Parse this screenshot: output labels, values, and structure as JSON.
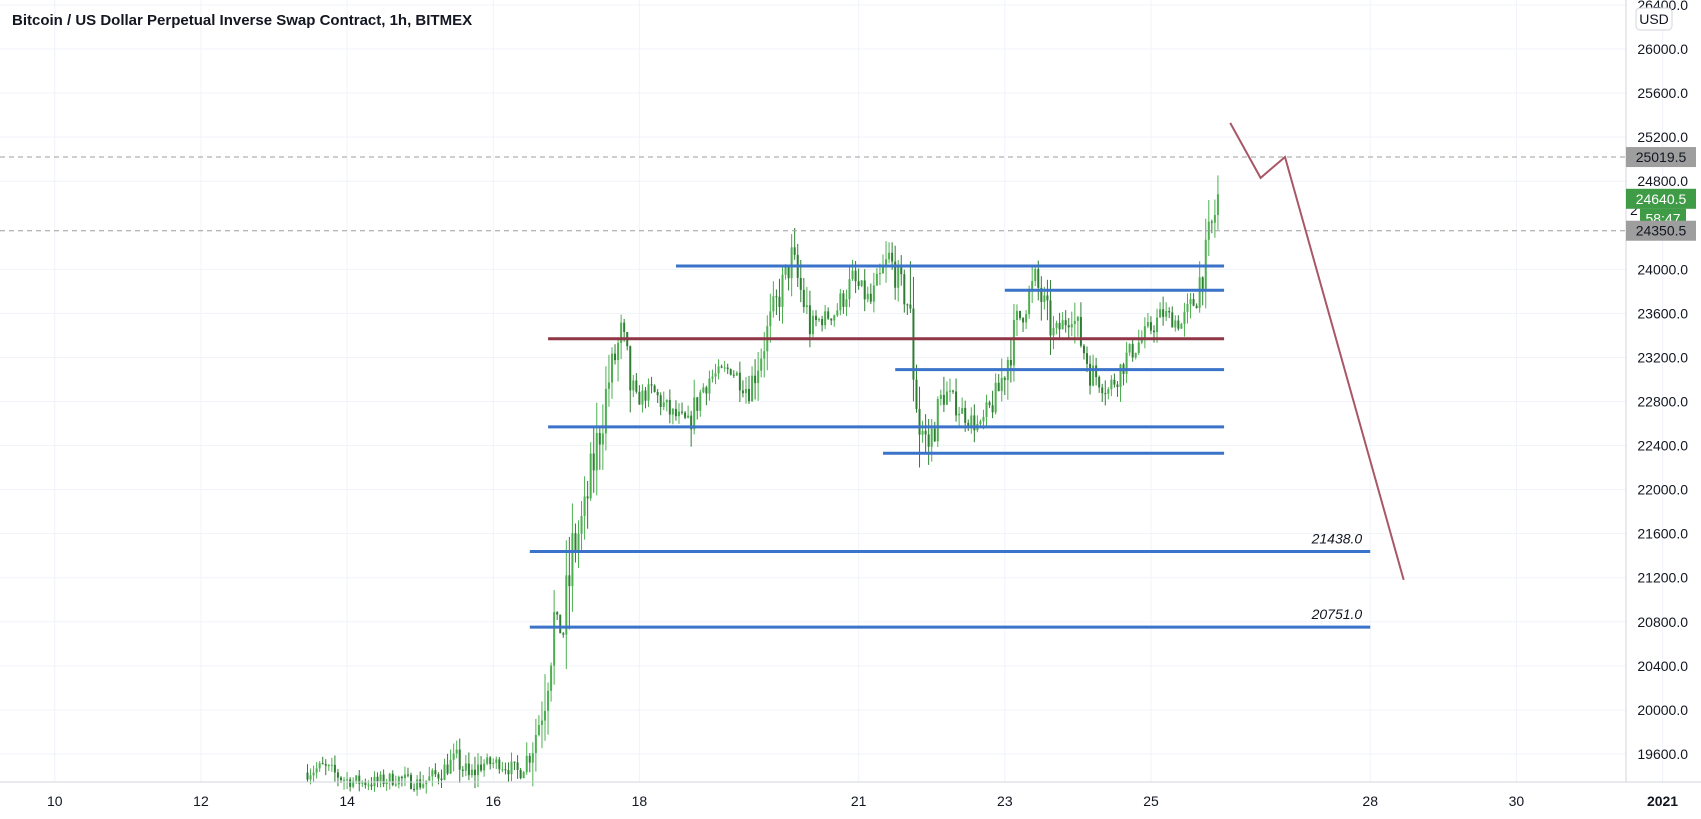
{
  "title": "Bitcoin / US Dollar Perpetual Inverse Swap Contract, 1h, BITMEX",
  "currency_button": "USD",
  "colors": {
    "up": "#4caf50",
    "up_dark": "#2e7d32",
    "level_blue": "#3a73c9",
    "level_maroon": "#8e3646",
    "projection": "#a85766",
    "price_badge": "#3f9b46",
    "gray_badge": "#9e9e9e",
    "dashed": "#9e9e9e"
  },
  "price_badges": [
    {
      "label": "25019.5",
      "value": 25019.5,
      "style": "gray"
    },
    {
      "label": "24640.5",
      "value": 24640.5,
      "style": "green"
    },
    {
      "label": "58:47",
      "value": 24460,
      "style": "green-timer"
    },
    {
      "label": "24350.5",
      "value": 24350.5,
      "style": "gray"
    }
  ],
  "partial_tick": {
    "label": "2",
    "value": 24540
  },
  "chart_data": {
    "type": "candlestick",
    "x_axis_type": "date",
    "x_range": [
      "2020-12-09T06:00",
      "2020-12-31T12:00"
    ],
    "x_ticks": [
      {
        "label": "10",
        "date": "2020-12-10"
      },
      {
        "label": "12",
        "date": "2020-12-12"
      },
      {
        "label": "14",
        "date": "2020-12-14"
      },
      {
        "label": "16",
        "date": "2020-12-16"
      },
      {
        "label": "18",
        "date": "2020-12-18"
      },
      {
        "label": "21",
        "date": "2020-12-21"
      },
      {
        "label": "23",
        "date": "2020-12-23"
      },
      {
        "label": "25",
        "date": "2020-12-25"
      },
      {
        "label": "28",
        "date": "2020-12-28"
      },
      {
        "label": "30",
        "date": "2020-12-30"
      },
      {
        "label": "2021",
        "date": "2021-01-01"
      }
    ],
    "y_range": [
      19300,
      26400
    ],
    "y_ticks": [
      {
        "label": "19600.0",
        "value": 19600
      },
      {
        "label": "20000.0",
        "value": 20000
      },
      {
        "label": "20400.0",
        "value": 20400
      },
      {
        "label": "20800.0",
        "value": 20800
      },
      {
        "label": "21200.0",
        "value": 21200
      },
      {
        "label": "21600.0",
        "value": 21600
      },
      {
        "label": "22000.0",
        "value": 22000
      },
      {
        "label": "22400.0",
        "value": 22400
      },
      {
        "label": "22800.0",
        "value": 22800
      },
      {
        "label": "23200.0",
        "value": 23200
      },
      {
        "label": "23600.0",
        "value": 23600
      },
      {
        "label": "24000.0",
        "value": 24000
      },
      {
        "label": "24800.0",
        "value": 24800
      },
      {
        "label": "25200.0",
        "value": 25200
      },
      {
        "label": "25600.0",
        "value": 25600
      },
      {
        "label": "26000.0",
        "value": 26000
      },
      {
        "label": "26400.0",
        "value": 26400
      }
    ],
    "price_path": [
      [
        "2020-12-13T10:00",
        19430
      ],
      [
        "2020-12-13T16:00",
        19480
      ],
      [
        "2020-12-14T00:00",
        19360
      ],
      [
        "2020-12-14T08:00",
        19340
      ],
      [
        "2020-12-14T16:00",
        19380
      ],
      [
        "2020-12-15T00:00",
        19330
      ],
      [
        "2020-12-15T06:00",
        19420
      ],
      [
        "2020-12-15T12:00",
        19560
      ],
      [
        "2020-12-15T16:00",
        19380
      ],
      [
        "2020-12-15T20:00",
        19510
      ],
      [
        "2020-12-16T02:00",
        19520
      ],
      [
        "2020-12-16T08:00",
        19440
      ],
      [
        "2020-12-16T12:00",
        19600
      ],
      [
        "2020-12-16T16:00",
        20000
      ],
      [
        "2020-12-16T20:00",
        20800
      ],
      [
        "2020-12-16T23:00",
        20700
      ],
      [
        "2020-12-17T02:00",
        21400
      ],
      [
        "2020-12-17T06:00",
        21800
      ],
      [
        "2020-12-17T10:00",
        22400
      ],
      [
        "2020-12-17T14:00",
        23000
      ],
      [
        "2020-12-17T18:00",
        23400
      ],
      [
        "2020-12-17T22:00",
        22800
      ],
      [
        "2020-12-18T04:00",
        22900
      ],
      [
        "2020-12-18T10:00",
        22700
      ],
      [
        "2020-12-18T16:00",
        22600
      ],
      [
        "2020-12-18T22:00",
        23000
      ],
      [
        "2020-12-19T06:00",
        23100
      ],
      [
        "2020-12-19T12:00",
        22900
      ],
      [
        "2020-12-19T20:00",
        23600
      ],
      [
        "2020-12-20T02:00",
        24100
      ],
      [
        "2020-12-20T08:00",
        23500
      ],
      [
        "2020-12-20T16:00",
        23600
      ],
      [
        "2020-12-20T22:00",
        23900
      ],
      [
        "2020-12-21T04:00",
        23700
      ],
      [
        "2020-12-21T10:00",
        24100
      ],
      [
        "2020-12-21T16:00",
        23700
      ],
      [
        "2020-12-21T20:00",
        22600
      ],
      [
        "2020-12-21T23:00",
        22400
      ],
      [
        "2020-12-22T04:00",
        22900
      ],
      [
        "2020-12-22T10:00",
        22700
      ],
      [
        "2020-12-22T16:00",
        22550
      ],
      [
        "2020-12-22T22:00",
        22900
      ],
      [
        "2020-12-23T04:00",
        23500
      ],
      [
        "2020-12-23T10:00",
        23900
      ],
      [
        "2020-12-23T16:00",
        23400
      ],
      [
        "2020-12-23T22:00",
        23600
      ],
      [
        "2020-12-24T04:00",
        23100
      ],
      [
        "2020-12-24T10:00",
        22900
      ],
      [
        "2020-12-24T16:00",
        23200
      ],
      [
        "2020-12-24T22:00",
        23400
      ],
      [
        "2020-12-25T04:00",
        23600
      ],
      [
        "2020-12-25T10:00",
        23500
      ],
      [
        "2020-12-25T14:00",
        23700
      ],
      [
        "2020-12-25T18:00",
        24100
      ],
      [
        "2020-12-25T22:00",
        24640.5
      ]
    ],
    "horizontal_levels": [
      {
        "price": 24030,
        "from": "2020-12-18T12:00",
        "to": "2020-12-26T00:00",
        "color": "blue",
        "label": ""
      },
      {
        "price": 23810,
        "from": "2020-12-23T00:00",
        "to": "2020-12-26T00:00",
        "color": "blue",
        "label": ""
      },
      {
        "price": 23370,
        "from": "2020-12-16T18:00",
        "to": "2020-12-26T00:00",
        "color": "maroon",
        "label": ""
      },
      {
        "price": 23090,
        "from": "2020-12-21T12:00",
        "to": "2020-12-26T00:00",
        "color": "blue",
        "label": ""
      },
      {
        "price": 22570,
        "from": "2020-12-16T18:00",
        "to": "2020-12-26T00:00",
        "color": "blue",
        "label": ""
      },
      {
        "price": 22330,
        "from": "2020-12-21T08:00",
        "to": "2020-12-26T00:00",
        "color": "blue",
        "label": ""
      },
      {
        "price": 21438,
        "from": "2020-12-16T12:00",
        "to": "2020-12-28T00:00",
        "color": "blue",
        "label": "21438.0"
      },
      {
        "price": 20751,
        "from": "2020-12-16T12:00",
        "to": "2020-12-28T00:00",
        "color": "blue",
        "label": "20751.0"
      }
    ],
    "dashed_levels": [
      25019.5,
      24350.5
    ],
    "projection": [
      [
        "2020-12-26T02:00",
        25330
      ],
      [
        "2020-12-26T12:00",
        24830
      ],
      [
        "2020-12-26T20:00",
        25020
      ],
      [
        "2020-12-28T11:00",
        21180
      ]
    ]
  }
}
